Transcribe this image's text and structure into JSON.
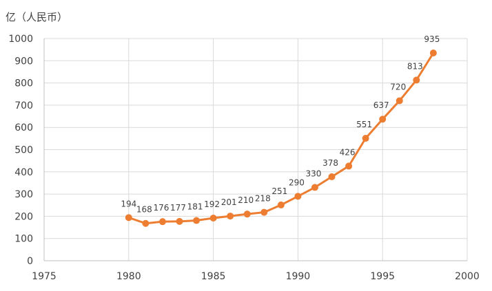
{
  "chart_data": {
    "type": "line",
    "title": "",
    "xlabel": "",
    "ylabel": "亿（人民币）",
    "xlim": [
      1975,
      2000
    ],
    "ylim": [
      0,
      1000
    ],
    "xticks": [
      1975,
      1980,
      1985,
      1990,
      1995,
      2000
    ],
    "yticks": [
      0,
      100,
      200,
      300,
      400,
      500,
      600,
      700,
      800,
      900,
      1000
    ],
    "grid": true,
    "series": [
      {
        "color": "#ED7D31",
        "x": [
          1980,
          1981,
          1982,
          1983,
          1984,
          1985,
          1986,
          1987,
          1988,
          1989,
          1990,
          1991,
          1992,
          1993,
          1994,
          1995,
          1996,
          1997,
          1998
        ],
        "y": [
          194,
          168,
          176,
          177,
          181,
          192,
          201,
          210,
          218,
          251,
          290,
          330,
          378,
          426,
          551,
          637,
          720,
          813,
          935
        ],
        "data_labels": [
          "194",
          "168",
          "176",
          "177",
          "181",
          "192",
          "201",
          "210",
          "218",
          "251",
          "290",
          "330",
          "378",
          "426",
          "551",
          "637",
          "720",
          "813",
          "935"
        ]
      }
    ]
  }
}
